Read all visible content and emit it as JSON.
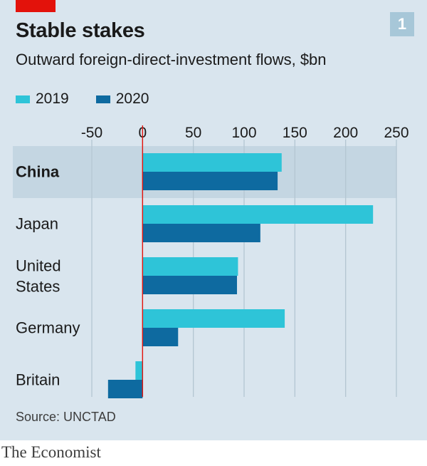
{
  "header": {
    "title": "Stable stakes",
    "subtitle": "Outward foreign-direct-investment flows, $bn",
    "chart_number": "1"
  },
  "colors": {
    "background": "#d9e5ee",
    "highlight_row": "#c4d6e2",
    "series_2019": "#2ec4d8",
    "series_2020": "#0e6aa0",
    "zero_line": "#e3120b",
    "brand_red": "#e3120b"
  },
  "footer": {
    "source": "Source: UNCTAD",
    "brand": "The Economist"
  },
  "chart_data": {
    "type": "bar",
    "orientation": "horizontal",
    "title": "Stable stakes",
    "subtitle": "Outward foreign-direct-investment flows, $bn",
    "categories": [
      "China",
      "Japan",
      "United States",
      "Germany",
      "Britain"
    ],
    "highlighted_category": "China",
    "series": [
      {
        "name": "2019",
        "color": "#2ec4d8",
        "values": [
          137,
          227,
          94,
          140,
          -7
        ]
      },
      {
        "name": "2020",
        "color": "#0e6aa0",
        "values": [
          133,
          116,
          93,
          35,
          -34
        ]
      }
    ],
    "xlim": [
      -50,
      250
    ],
    "xticks": [
      -50,
      0,
      50,
      100,
      150,
      200,
      250
    ],
    "grid": true,
    "legend_position": "top-left",
    "xlabel": "",
    "ylabel": ""
  }
}
